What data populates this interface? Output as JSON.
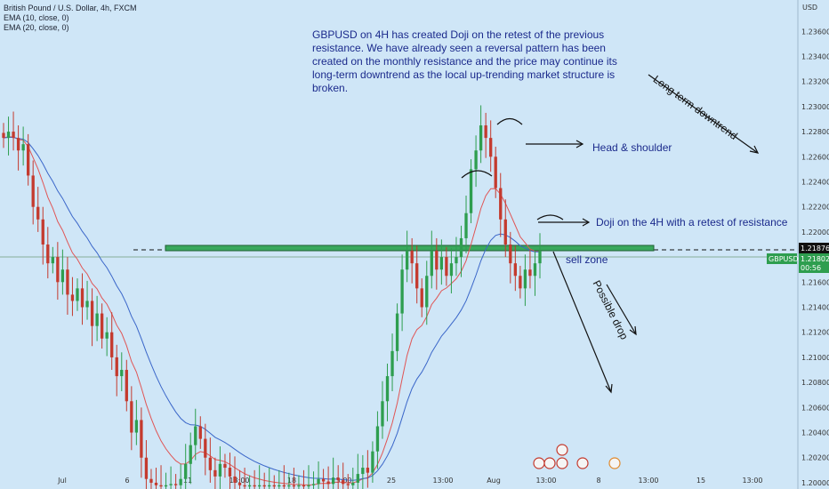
{
  "legend": {
    "title": "British Pound / U.S. Dollar, 4h, FXCM",
    "ema10": "EMA (10, close, 0)",
    "ema20": "EMA (20, close, 0)"
  },
  "annotations": {
    "note": "GBPUSD on 4H has created Doji on the retest of the previous resistance. We have already seen a reversal pattern has been created on the monthly resistance and the price may continue its long-term downtrend as the local up-trending market structure is broken.",
    "head_shoulder": "Head & shoulder",
    "doji": "Doji on the 4H with a retest of resistance",
    "sell_zone": "sell zone",
    "long_term": "Long term downtrend",
    "possible_drop": "Possible drop"
  },
  "axis": {
    "currency": "USD",
    "price_badge_1": "1.21876",
    "symbol_badge": "GBPUSD",
    "price_badge_2": "1.21802",
    "countdown": "00:56"
  },
  "colors": {
    "background": "#cfe6f7",
    "up": "#2e9e4f",
    "down": "#c43a2e",
    "ema10": "#e05555",
    "ema20": "#3a66c9",
    "zone": "#39a85c",
    "text": "#1b2a8c"
  },
  "chart_data": {
    "type": "candlestick",
    "title": "British Pound / U.S. Dollar, 4h, FXCM",
    "y_ticks": [
      1.236,
      1.234,
      1.232,
      1.23,
      1.228,
      1.226,
      1.224,
      1.222,
      1.22,
      1.218,
      1.216,
      1.214,
      1.212,
      1.21,
      1.208,
      1.206,
      1.204,
      1.202,
      1.2
    ],
    "ylim": [
      1.1995,
      1.2385
    ],
    "x_ticks": [
      "Jul",
      "6",
      "11",
      "13:00",
      "18",
      "13:00",
      "25",
      "13:00",
      "Aug",
      "13:00",
      "8",
      "13:00",
      "15",
      "13:00"
    ],
    "resistance_zone": 1.2188,
    "price_line": 1.21802,
    "closes": [
      1.2275,
      1.228,
      1.2275,
      1.2265,
      1.227,
      1.2245,
      1.222,
      1.221,
      1.219,
      1.2175,
      1.218,
      1.216,
      1.217,
      1.215,
      1.2145,
      1.2155,
      1.214,
      1.2145,
      1.2125,
      1.2135,
      1.2115,
      1.212,
      1.21,
      1.2085,
      1.209,
      1.2065,
      1.204,
      1.205,
      1.202,
      1.2003,
      1.2,
      1.1998,
      1.1997,
      1.1998,
      1.1999,
      1.1998,
      1.2003,
      1.2015,
      1.203,
      1.2045,
      1.2035,
      1.202,
      1.201,
      1.2005,
      1.2015,
      1.2012,
      1.2005,
      1.2,
      1.1998,
      1.1997,
      1.1998,
      1.1997,
      1.1998,
      1.1997,
      1.1998,
      1.1997,
      1.1998,
      1.1997,
      1.1998,
      1.1997,
      1.1998,
      1.1997,
      1.1998,
      1.1999,
      1.2003,
      1.2001,
      1.1999,
      1.2004,
      1.2002,
      1.1999,
      1.1998,
      1.2,
      1.2007,
      1.2012,
      1.2008,
      1.2025,
      1.2045,
      1.2065,
      1.2085,
      1.2105,
      1.2135,
      1.217,
      1.2185,
      1.2175,
      1.2155,
      1.214,
      1.2165,
      1.2185,
      1.217,
      1.218,
      1.2165,
      1.2175,
      1.218,
      1.2195,
      1.2215,
      1.225,
      1.2265,
      1.2285,
      1.2275,
      1.226,
      1.2235,
      1.221,
      1.219,
      1.2175,
      1.2165,
      1.2155,
      1.217,
      1.2165,
      1.2175,
      1.2185
    ]
  }
}
